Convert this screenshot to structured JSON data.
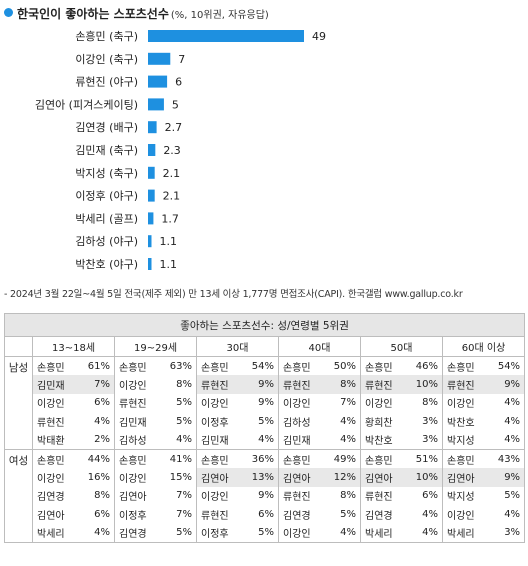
{
  "title": "한국인이 좋아하는 스포츠선수",
  "subtitle": "(%, 10위권, 자유응답)",
  "chart_data": {
    "type": "bar",
    "orientation": "horizontal",
    "categories": [
      "손흥민 (축구)",
      "이강인 (축구)",
      "류현진 (야구)",
      "김연아 (피겨스케이팅)",
      "김연경 (배구)",
      "김민재 (축구)",
      "박지성 (축구)",
      "이정후 (야구)",
      "박세리 (골프)",
      "김하성 (야구)",
      "박찬호 (야구)"
    ],
    "values": [
      49,
      7,
      6,
      5,
      2.7,
      2.3,
      2.1,
      2.1,
      1.7,
      1.1,
      1.1
    ],
    "value_labels": [
      "49",
      "7",
      "6",
      "5",
      "2.7",
      "2.3",
      "2.1",
      "2.1",
      "1.7",
      "1.1",
      "1.1"
    ],
    "bar_color": "#1e90e0",
    "grid": false,
    "legend": "none"
  },
  "note": "- 2024년 3월 22일~4월 5일 전국(제주 제외) 만 13세 이상 1,777명 면접조사(CAPI). 한국갤럽 www.gallup.co.kr",
  "table": {
    "caption": "좋아하는 스포츠선수: 성/연령별 5위권",
    "columns": [
      "13~18세",
      "19~29세",
      "30대",
      "40대",
      "50대",
      "60대 이상"
    ],
    "shade_color": "#e8e8e8",
    "groups": [
      {
        "gender": "남성",
        "rows": [
          [
            {
              "name": "손흥민",
              "pct": "61%"
            },
            {
              "name": "손흥민",
              "pct": "63%"
            },
            {
              "name": "손흥민",
              "pct": "54%"
            },
            {
              "name": "손흥민",
              "pct": "50%"
            },
            {
              "name": "손흥민",
              "pct": "46%"
            },
            {
              "name": "손흥민",
              "pct": "54%"
            }
          ],
          [
            {
              "name": "김민재",
              "pct": "7%",
              "shade": true
            },
            {
              "name": "이강인",
              "pct": "8%"
            },
            {
              "name": "류현진",
              "pct": "9%",
              "shade": true
            },
            {
              "name": "류현진",
              "pct": "8%",
              "shade": true
            },
            {
              "name": "류현진",
              "pct": "10%",
              "shade": true
            },
            {
              "name": "류현진",
              "pct": "9%",
              "shade": true
            }
          ],
          [
            {
              "name": "이강인",
              "pct": "6%"
            },
            {
              "name": "류현진",
              "pct": "5%"
            },
            {
              "name": "이강인",
              "pct": "9%"
            },
            {
              "name": "이강인",
              "pct": "7%"
            },
            {
              "name": "이강인",
              "pct": "8%"
            },
            {
              "name": "이강인",
              "pct": "4%"
            }
          ],
          [
            {
              "name": "류현진",
              "pct": "4%"
            },
            {
              "name": "김민재",
              "pct": "5%"
            },
            {
              "name": "이정후",
              "pct": "5%"
            },
            {
              "name": "김하성",
              "pct": "4%"
            },
            {
              "name": "황희찬",
              "pct": "3%"
            },
            {
              "name": "박찬호",
              "pct": "4%"
            }
          ],
          [
            {
              "name": "박태환",
              "pct": "2%"
            },
            {
              "name": "김하성",
              "pct": "4%"
            },
            {
              "name": "김민재",
              "pct": "4%"
            },
            {
              "name": "김민재",
              "pct": "4%"
            },
            {
              "name": "박찬호",
              "pct": "3%"
            },
            {
              "name": "박지성",
              "pct": "4%"
            }
          ]
        ]
      },
      {
        "gender": "여성",
        "rows": [
          [
            {
              "name": "손흥민",
              "pct": "44%"
            },
            {
              "name": "손흥민",
              "pct": "41%"
            },
            {
              "name": "손흥민",
              "pct": "36%"
            },
            {
              "name": "손흥민",
              "pct": "49%"
            },
            {
              "name": "손흥민",
              "pct": "51%"
            },
            {
              "name": "손흥민",
              "pct": "43%"
            }
          ],
          [
            {
              "name": "이강인",
              "pct": "16%"
            },
            {
              "name": "이강인",
              "pct": "15%"
            },
            {
              "name": "김연아",
              "pct": "13%",
              "shade": true
            },
            {
              "name": "김연아",
              "pct": "12%",
              "shade": true
            },
            {
              "name": "김연아",
              "pct": "10%",
              "shade": true
            },
            {
              "name": "김연아",
              "pct": "9%",
              "shade": true
            }
          ],
          [
            {
              "name": "김연경",
              "pct": "8%"
            },
            {
              "name": "김연아",
              "pct": "7%"
            },
            {
              "name": "이강인",
              "pct": "9%"
            },
            {
              "name": "류현진",
              "pct": "8%"
            },
            {
              "name": "류현진",
              "pct": "6%"
            },
            {
              "name": "박지성",
              "pct": "5%"
            }
          ],
          [
            {
              "name": "김연아",
              "pct": "6%"
            },
            {
              "name": "이정후",
              "pct": "7%"
            },
            {
              "name": "류현진",
              "pct": "6%"
            },
            {
              "name": "김연경",
              "pct": "5%"
            },
            {
              "name": "김연경",
              "pct": "4%"
            },
            {
              "name": "이강인",
              "pct": "4%"
            }
          ],
          [
            {
              "name": "박세리",
              "pct": "4%"
            },
            {
              "name": "김연경",
              "pct": "5%"
            },
            {
              "name": "이정후",
              "pct": "5%"
            },
            {
              "name": "이강인",
              "pct": "4%"
            },
            {
              "name": "박세리",
              "pct": "4%"
            },
            {
              "name": "박세리",
              "pct": "3%"
            }
          ]
        ]
      }
    ]
  }
}
